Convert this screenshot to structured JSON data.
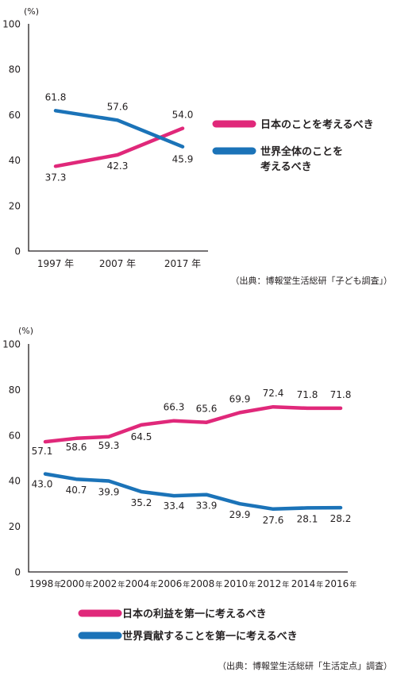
{
  "chart_data": [
    {
      "type": "line",
      "unit_label": "(%)",
      "ylim": [
        0,
        100
      ],
      "yticks": [
        "0",
        "20",
        "40",
        "60",
        "80",
        "100"
      ],
      "x": [
        1997,
        2007,
        2017
      ],
      "xtick_labels": [
        "1997 年",
        "2007 年",
        "2017 年"
      ],
      "series": [
        {
          "name": "日本のことを考えるべき",
          "color": "#e0287a",
          "values": [
            37.3,
            42.3,
            54.0
          ],
          "labels": [
            "37.3",
            "42.3",
            "54.0"
          ]
        },
        {
          "name": "世界全体のことを考えるべき",
          "name_lines": [
            "世界全体のことを",
            "考えるべき"
          ],
          "color": "#1b73b8",
          "values": [
            61.8,
            57.6,
            45.9
          ],
          "labels": [
            "61.8",
            "57.6",
            "45.9"
          ]
        }
      ],
      "source": "（出典：博報堂生活総研「子ども調査」）"
    },
    {
      "type": "line",
      "unit_label": "(%)",
      "ylim": [
        0,
        100
      ],
      "yticks": [
        "0",
        "20",
        "40",
        "60",
        "80",
        "100"
      ],
      "x": [
        1998,
        2000,
        2002,
        2004,
        2006,
        2008,
        2010,
        2012,
        2014,
        2016
      ],
      "xtick_labels": [
        "1998",
        "2000",
        "2002",
        "2004",
        "2006",
        "2008",
        "2010",
        "2012",
        "2014",
        "2016"
      ],
      "xtick_suffix": "年",
      "series": [
        {
          "name": "日本の利益を第一に考えるべき",
          "color": "#e0287a",
          "values": [
            57.1,
            58.6,
            59.3,
            64.5,
            66.3,
            65.6,
            69.9,
            72.4,
            71.8,
            71.8
          ],
          "labels": [
            "57.1",
            "58.6",
            "59.3",
            "64.5",
            "66.3",
            "65.6",
            "69.9",
            "72.4",
            "71.8",
            "71.8"
          ]
        },
        {
          "name": "世界貢献することを第一に考えるべき",
          "color": "#1b73b8",
          "values": [
            43.0,
            40.7,
            39.9,
            35.2,
            33.4,
            33.9,
            29.9,
            27.6,
            28.1,
            28.2
          ],
          "labels": [
            "43.0",
            "40.7",
            "39.9",
            "35.2",
            "33.4",
            "33.9",
            "29.9",
            "27.6",
            "28.1",
            "28.2"
          ]
        }
      ],
      "source": "（出典：博報堂生活総研「生活定点」調査）"
    }
  ]
}
